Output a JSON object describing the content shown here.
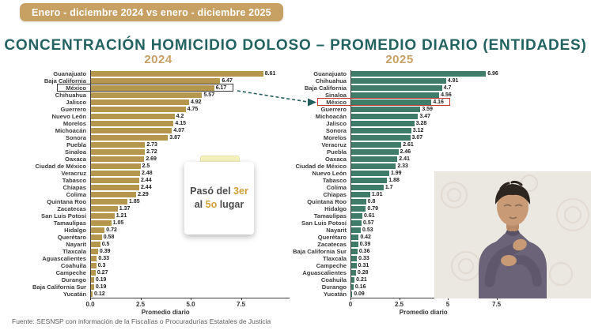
{
  "banner": {
    "label": "Enero - diciembre  2024 vs enero - diciembre 2025",
    "bg_color": "#c7a164"
  },
  "title": "CONCENTRACIÓN HOMICIDIO DOLOSO – PROMEDIO DIARIO (ENTIDADES)",
  "note": {
    "pre1": "Pasó del ",
    "hl1": "3er",
    "pre2": "al ",
    "hl2": "5o",
    "post2": " lugar"
  },
  "footer": "Fuente: SESNSP con información de la Fiscalías o Procuradurías Estatales de Justicia",
  "accent_colors": {
    "gold": "#c7a164",
    "teal_title": "#226260",
    "bar_2024": "#b4964d",
    "bar_2025": "#3f7d6a",
    "highlight_2024_box": "#3d3d3d",
    "highlight_2025_box": "#c3392f"
  },
  "chart_data": [
    {
      "type": "bar",
      "orientation": "horizontal",
      "title": "2024",
      "xlabel": "Promedio diario",
      "xlim": [
        0,
        9.5
      ],
      "xticks": [
        "0.0",
        "2.5",
        "5.0",
        "7.5"
      ],
      "grid": false,
      "bar_color": "#b4964d",
      "highlight": {
        "category": "México",
        "box_color": "#3d3d3d"
      },
      "categories": [
        "Guanajuato",
        "Baja California",
        "México",
        "Chihuahua",
        "Jalisco",
        "Guerrero",
        "Nuevo León",
        "Morelos",
        "Michoacán",
        "Sonora",
        "Puebla",
        "Sinaloa",
        "Oaxaca",
        "Ciudad de México",
        "Veracruz",
        "Tabasco",
        "Chiapas",
        "Colima",
        "Quintana Roo",
        "Zacatecas",
        "San Luis Potosí",
        "Tamaulipas",
        "Hidalgo",
        "Querétaro",
        "Nayarit",
        "Tlaxcala",
        "Aguascalientes",
        "Coahuila",
        "Campeche",
        "Durango",
        "Baja California Sur",
        "Yucatán"
      ],
      "values": [
        8.61,
        6.47,
        6.17,
        5.57,
        4.92,
        4.75,
        4.2,
        4.15,
        4.07,
        3.87,
        2.73,
        2.72,
        2.69,
        2.5,
        2.48,
        2.44,
        2.44,
        2.29,
        1.85,
        1.37,
        1.21,
        1.05,
        0.72,
        0.58,
        0.5,
        0.39,
        0.33,
        0.3,
        0.27,
        0.19,
        0.19,
        0.12
      ]
    },
    {
      "type": "bar",
      "orientation": "horizontal",
      "title": "2025",
      "xlabel": "Promedio diario",
      "xlim": [
        0,
        9.5
      ],
      "xticks": [
        "0",
        "2.5",
        "5",
        "7.5"
      ],
      "grid": false,
      "bar_color": "#3f7d6a",
      "highlight": {
        "category": "México",
        "box_color": "#c3392f"
      },
      "categories": [
        "Guanajuato",
        "Chihuahua",
        "Baja California",
        "Sinaloa",
        "México",
        "Guerrero",
        "Michoacán",
        "Jalisco",
        "Sonora",
        "Morelos",
        "Veracruz",
        "Puebla",
        "Oaxaca",
        "Ciudad de México",
        "Nuevo León",
        "Tabasco",
        "Colima",
        "Chiapas",
        "Quintana Roo",
        "Hidalgo",
        "Tamaulipas",
        "San Luis Potosí",
        "Nayarit",
        "Querétaro",
        "Zacatecas",
        "Baja California Sur",
        "Tlaxcala",
        "Campeche",
        "Aguascalientes",
        "Coahuila",
        "Durango",
        "Yucatán"
      ],
      "values": [
        6.96,
        4.91,
        4.7,
        4.56,
        4.16,
        3.59,
        3.47,
        3.28,
        3.12,
        3.07,
        2.61,
        2.46,
        2.41,
        2.33,
        1.99,
        1.88,
        1.7,
        1.01,
        0.8,
        0.79,
        0.61,
        0.57,
        0.53,
        0.42,
        0.39,
        0.36,
        0.33,
        0.31,
        0.28,
        0.21,
        0.16,
        0.09
      ]
    }
  ]
}
